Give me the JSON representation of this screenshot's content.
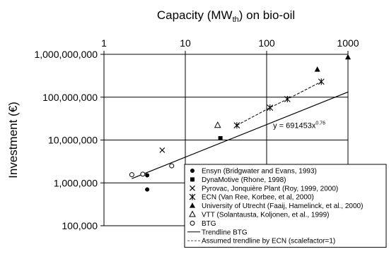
{
  "chart_data": {
    "type": "scatter",
    "x_axis": {
      "title_main": "Capacity (MW",
      "title_sub": "th",
      "title_tail": ") on bio-oil",
      "scale": "log",
      "range": [
        1,
        1000
      ],
      "ticks": [
        1,
        10,
        100,
        1000
      ],
      "tick_labels": [
        "1",
        "10",
        "100",
        "1000"
      ],
      "position": "top"
    },
    "y_axis": {
      "title": "Investment (€)",
      "scale": "log",
      "range": [
        100000,
        1000000000
      ],
      "ticks": [
        100000,
        1000000,
        10000000,
        100000000,
        1000000000
      ],
      "tick_labels": [
        "100,000",
        "1,000,000",
        "10,000,000",
        "100,000,000",
        "1,000,000,000"
      ]
    },
    "grid": true,
    "legend_placement": "bottom-right",
    "series": [
      {
        "name": "Ensyn (Bridgwater and Evans, 1993)",
        "marker": "circle-filled",
        "points": [
          [
            3.4,
            1500000
          ],
          [
            3.4,
            700000
          ]
        ]
      },
      {
        "name": "DynaMotive (Rhone, 1998)",
        "marker": "square-filled",
        "points": [
          [
            27,
            11000000
          ]
        ]
      },
      {
        "name": "Pyrovac, Jonquière Plant (Roy, 1999, 2000)",
        "marker": "x",
        "points": [
          [
            5.2,
            5800000
          ]
        ]
      },
      {
        "name": "ECN  (Van Ree, Korbee, et al, 2000)",
        "marker": "asterisk",
        "points": [
          [
            43,
            22000000
          ],
          [
            110,
            57000000
          ],
          [
            180,
            90000000
          ],
          [
            470,
            230000000
          ]
        ]
      },
      {
        "name": "University of Utrecht (Faaij, Hamelinck, et al., 2000)",
        "marker": "triangle-filled",
        "points": [
          [
            420,
            440000000
          ],
          [
            1000,
            850000000
          ]
        ]
      },
      {
        "name": "VTT (Solantausta, Koljonen, et al., 1999)",
        "marker": "triangle-open",
        "points": [
          [
            25,
            22000000
          ]
        ]
      },
      {
        "name": "BTG",
        "marker": "circle-open",
        "points": [
          [
            2.2,
            1550000
          ],
          [
            3.0,
            1600000
          ],
          [
            6.8,
            2500000
          ]
        ]
      }
    ],
    "trendlines": [
      {
        "name": "Trendline BTG",
        "style": "solid",
        "x_range": [
          2.2,
          1000
        ],
        "coef": 691453,
        "exponent": 0.76
      },
      {
        "name": "Assumed trendline by ECN (scalefactor=1)",
        "style": "dashed",
        "points": [
          [
            43,
            22000000
          ],
          [
            110,
            57000000
          ],
          [
            180,
            90000000
          ],
          [
            470,
            230000000
          ]
        ]
      }
    ],
    "annotation": {
      "text": "y = 691453x",
      "superscript": "0.76",
      "at": [
        120,
        19000000
      ]
    }
  }
}
